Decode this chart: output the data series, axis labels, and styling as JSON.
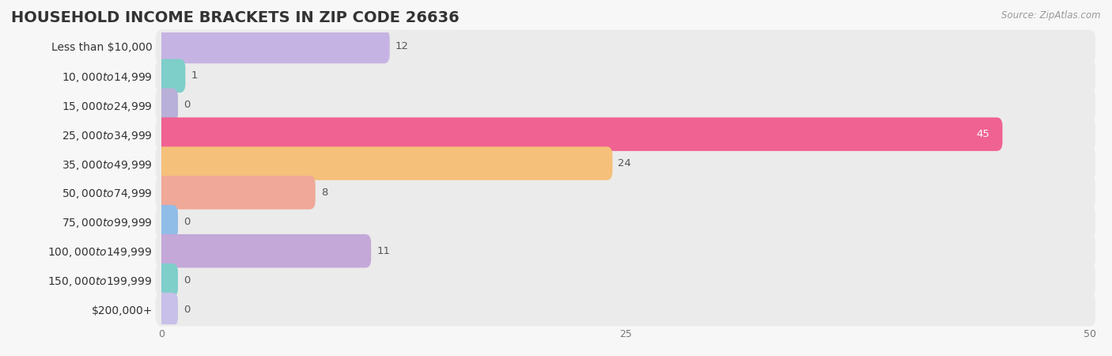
{
  "title": "HOUSEHOLD INCOME BRACKETS IN ZIP CODE 26636",
  "source": "Source: ZipAtlas.com",
  "categories": [
    "Less than $10,000",
    "$10,000 to $14,999",
    "$15,000 to $24,999",
    "$25,000 to $34,999",
    "$35,000 to $49,999",
    "$50,000 to $74,999",
    "$75,000 to $99,999",
    "$100,000 to $149,999",
    "$150,000 to $199,999",
    "$200,000+"
  ],
  "values": [
    12,
    1,
    0,
    45,
    24,
    8,
    0,
    11,
    0,
    0
  ],
  "bar_colors": [
    "#c5b4e3",
    "#7ececa",
    "#b8b0d8",
    "#f06292",
    "#f5c07a",
    "#f0a898",
    "#90bce8",
    "#c4a8d8",
    "#7ececa",
    "#c8c0e8"
  ],
  "xlim": [
    0,
    50
  ],
  "xticks": [
    0,
    25,
    50
  ],
  "background_color": "#f7f7f7",
  "row_bg_color": "#ebebeb",
  "title_fontsize": 14,
  "label_fontsize": 10,
  "value_fontsize": 9.5,
  "bar_height": 0.55
}
